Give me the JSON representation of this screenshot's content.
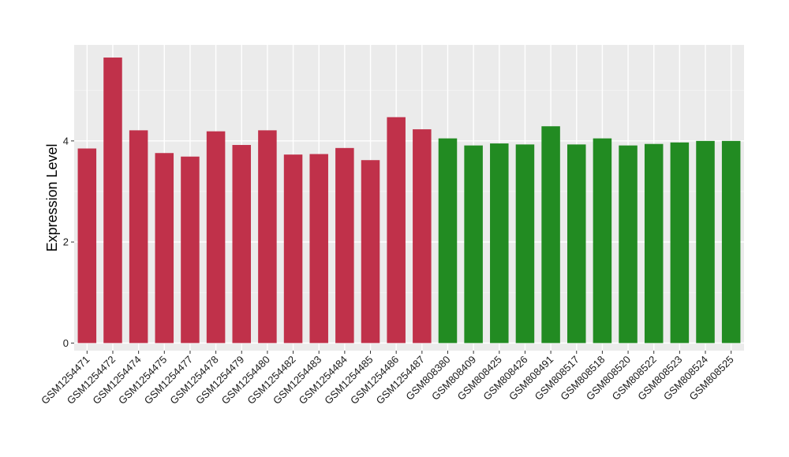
{
  "chart_data": {
    "type": "bar",
    "title": "",
    "xlabel": "",
    "ylabel": "Expression Level",
    "ylim": [
      -0.15,
      5.9
    ],
    "yticks": [
      0,
      2,
      4
    ],
    "grid": true,
    "legend": "none",
    "categories": [
      "GSM1254471",
      "GSM1254472",
      "GSM1254474",
      "GSM1254475",
      "GSM1254477",
      "GSM1254478",
      "GSM1254479",
      "GSM1254480",
      "GSM1254482",
      "GSM1254483",
      "GSM1254484",
      "GSM1254485",
      "GSM1254486",
      "GSM1254487",
      "GSM808380",
      "GSM808409",
      "GSM808425",
      "GSM808426",
      "GSM808491",
      "GSM808517",
      "GSM808518",
      "GSM808520",
      "GSM808522",
      "GSM808523",
      "GSM808524",
      "GSM808525"
    ],
    "values": [
      3.85,
      5.65,
      4.21,
      3.76,
      3.69,
      4.19,
      3.92,
      4.21,
      3.73,
      3.74,
      3.86,
      3.62,
      4.47,
      4.23,
      4.05,
      3.91,
      3.95,
      3.93,
      4.29,
      3.93,
      4.05,
      3.91,
      3.94,
      3.97,
      4.0,
      4.0
    ],
    "groups": [
      0,
      0,
      0,
      0,
      0,
      0,
      0,
      0,
      0,
      0,
      0,
      0,
      0,
      0,
      1,
      1,
      1,
      1,
      1,
      1,
      1,
      1,
      1,
      1,
      1,
      1
    ],
    "colors": [
      "#c0314a",
      "#228b22"
    ]
  }
}
